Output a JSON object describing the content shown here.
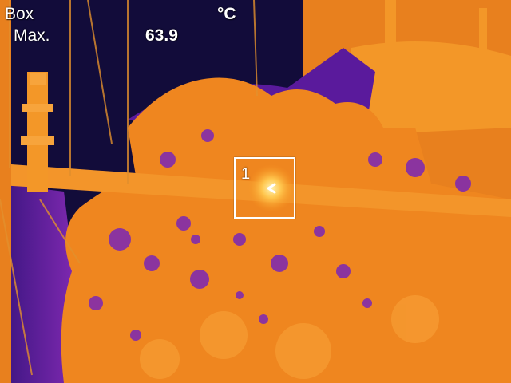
{
  "hud": {
    "mode": "Box",
    "stat_label": "Max.",
    "unit": "°C",
    "value": "63.9"
  },
  "measure_box": {
    "index": "1"
  },
  "palette": {
    "cold": "#120c3a",
    "cool": "#6b1fb0",
    "mid": "#b844a8",
    "warm": "#f08a1e",
    "hot": "#ffc24a",
    "hottest": "#fff6c8"
  },
  "icons": {
    "hotspot": "hotspot-chevron-icon"
  }
}
